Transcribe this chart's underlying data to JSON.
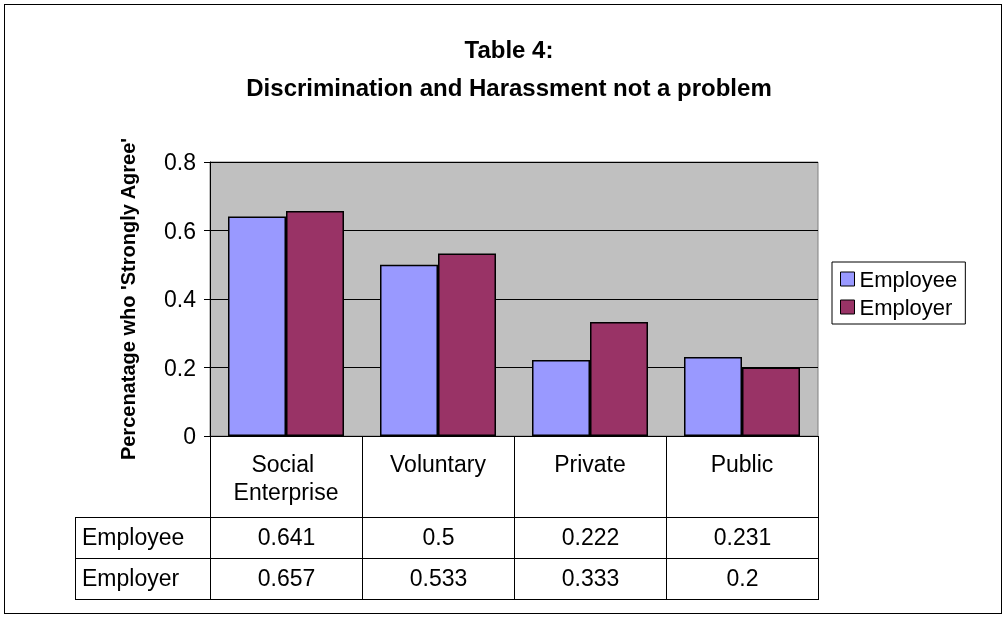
{
  "chart_data": {
    "type": "bar",
    "title": "Table 4:",
    "subtitle": "Discrimination and Harassment not a problem",
    "ylabel": "Percenatage who 'Strongly Agree'",
    "categories": [
      "Social Enterprise",
      "Voluntary",
      "Private",
      "Public"
    ],
    "series": [
      {
        "name": "Employee",
        "color": "#9999ff",
        "values": [
          0.641,
          0.5,
          0.222,
          0.231
        ]
      },
      {
        "name": "Employer",
        "color": "#993366",
        "values": [
          0.657,
          0.533,
          0.333,
          0.2
        ]
      }
    ],
    "ylim": [
      0,
      0.8
    ],
    "yticks": [
      0,
      0.2,
      0.4,
      0.6,
      0.8
    ],
    "grid": "y",
    "legend": "right",
    "data_labels": true
  }
}
